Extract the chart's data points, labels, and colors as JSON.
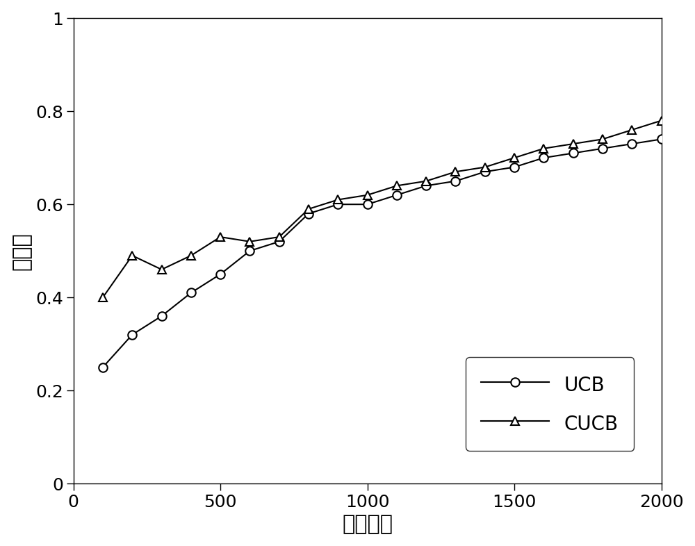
{
  "ucb_x": [
    100,
    200,
    300,
    400,
    500,
    600,
    700,
    800,
    900,
    1000,
    1100,
    1200,
    1300,
    1400,
    1500,
    1600,
    1700,
    1800,
    1900,
    2000
  ],
  "ucb_y": [
    0.25,
    0.32,
    0.36,
    0.41,
    0.45,
    0.5,
    0.52,
    0.58,
    0.6,
    0.6,
    0.62,
    0.64,
    0.65,
    0.67,
    0.68,
    0.7,
    0.71,
    0.72,
    0.73,
    0.74
  ],
  "cucb_x": [
    100,
    200,
    300,
    400,
    500,
    600,
    700,
    800,
    900,
    1000,
    1100,
    1200,
    1300,
    1400,
    1500,
    1600,
    1700,
    1800,
    1900,
    2000
  ],
  "cucb_y": [
    0.4,
    0.49,
    0.46,
    0.49,
    0.53,
    0.52,
    0.53,
    0.59,
    0.61,
    0.62,
    0.64,
    0.65,
    0.67,
    0.68,
    0.7,
    0.72,
    0.73,
    0.74,
    0.76,
    0.78
  ],
  "xlabel": "迭代次数",
  "ylabel": "准确率",
  "xlim": [
    0,
    2000
  ],
  "ylim": [
    0,
    1.0
  ],
  "xticks": [
    0,
    500,
    1000,
    1500,
    2000
  ],
  "yticks": [
    0,
    0.2,
    0.4,
    0.6,
    0.8,
    1.0
  ],
  "line_color": "#000000",
  "marker_size": 9,
  "linewidth": 1.5,
  "label_ucb": "UCB",
  "label_cucb": "CUCB",
  "xlabel_fontsize": 22,
  "ylabel_fontsize": 22,
  "tick_fontsize": 18,
  "legend_fontsize": 20
}
